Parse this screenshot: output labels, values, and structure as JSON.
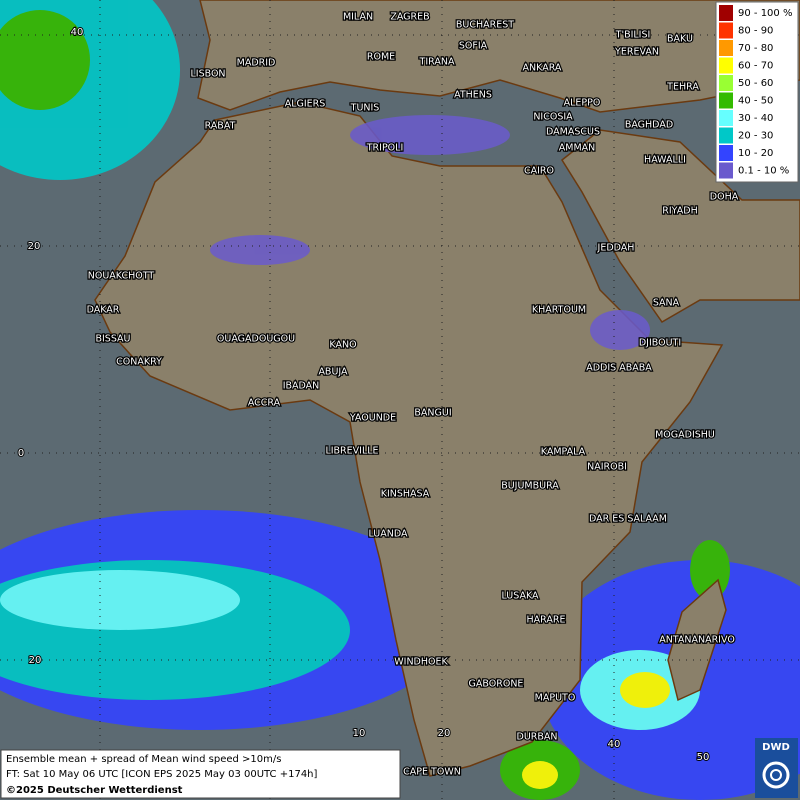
{
  "map": {
    "cities": [
      "MILAN",
      "ZAGREB",
      "BUCHAREST",
      "SOFIA",
      "ROME",
      "TIRANA",
      "ANKARA",
      "T'BILISI",
      "BAKU",
      "YEREVAN",
      "TEHRA",
      "LISBON",
      "MADRID",
      "ALGIERS",
      "TUNIS",
      "ATHENS",
      "ALEPPO",
      "NICOSIA",
      "BAGHDAD",
      "DAMASCUS",
      "RABAT",
      "TRIPOLI",
      "AMMAN",
      "HAWALLI",
      "CAIRO",
      "DOHA",
      "RIYADH",
      "JEDDAH",
      "NOUAKCHOTT",
      "SANA",
      "KHARTOUM",
      "DAKAR",
      "BISSAU",
      "DJIBOUTI",
      "OUAGADOUGOU",
      "KANO",
      "CONAKRY",
      "ADDIS ABABA",
      "ABUJA",
      "IBADAN",
      "ACCRA",
      "YAOUNDE",
      "BANGUI",
      "MOGADISHU",
      "LIBREVILLE",
      "KAMPALA",
      "NAIROBI",
      "BUJUMBURA",
      "KINSHASA",
      "DAR ES SALAAM",
      "LUANDA",
      "LUSAKA",
      "HARARE",
      "ANTANANARIVO",
      "WINDHOEK",
      "GABORONE",
      "MAPUTO",
      "DURBAN",
      "CAPE TOWN"
    ],
    "lat_labels": [
      40,
      20,
      0,
      20
    ],
    "lon_labels": [
      10,
      20,
      40,
      50
    ]
  },
  "legend": [
    {
      "label": "90 - 100 %",
      "color": "#a00000"
    },
    {
      "label": "80 - 90",
      "color": "#ff3300"
    },
    {
      "label": "70 - 80",
      "color": "#ff9900"
    },
    {
      "label": "60 - 70",
      "color": "#ffff00"
    },
    {
      "label": "50 - 60",
      "color": "#99ff33"
    },
    {
      "label": "40 - 50",
      "color": "#33bb00"
    },
    {
      "label": "30 - 40",
      "color": "#66ffff"
    },
    {
      "label": "20 - 30",
      "color": "#00c8c8"
    },
    {
      "label": "10 - 20",
      "color": "#3344ff"
    },
    {
      "label": "0.1 - 10 %",
      "color": "#6a5acd"
    }
  ],
  "info": {
    "line1": "Ensemble mean + spread of Mean wind speed >10m/s",
    "line2": "FT: Sat 10 May 06 UTC [ICON EPS 2025 May 03 00UTC +174h]",
    "line3": "©2025 Deutscher Wetterdienst"
  },
  "logo": "DWD"
}
